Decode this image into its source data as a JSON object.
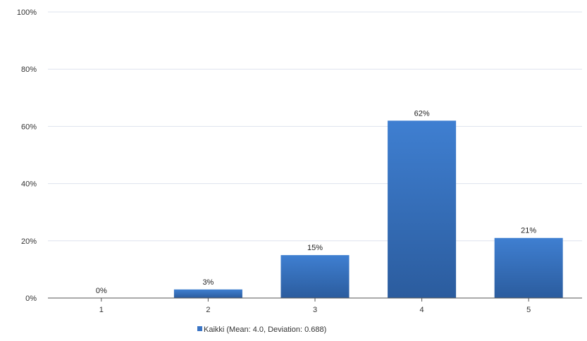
{
  "chart_data": {
    "type": "bar",
    "categories": [
      "1",
      "2",
      "3",
      "4",
      "5"
    ],
    "series": [
      {
        "name": "Kaikki (Mean: 4.0, Deviation: 0.688)",
        "values": [
          0,
          3,
          15,
          62,
          21
        ],
        "data_labels": [
          "0%",
          "3%",
          "15%",
          "62%",
          "21%"
        ]
      }
    ],
    "y_ticks": [
      0,
      20,
      40,
      60,
      80,
      100
    ],
    "y_tick_labels": [
      "0%",
      "20%",
      "40%",
      "60%",
      "80%",
      "100%"
    ],
    "ylim": [
      0,
      100
    ],
    "grid": true,
    "legend_position": "bottom-center",
    "colors": {
      "bar_top": "#3f7fd1",
      "bar_bottom": "#2b5c9e",
      "grid": "#dde3ee",
      "axis": "#555555",
      "legend_marker": "#3a74c4"
    }
  }
}
